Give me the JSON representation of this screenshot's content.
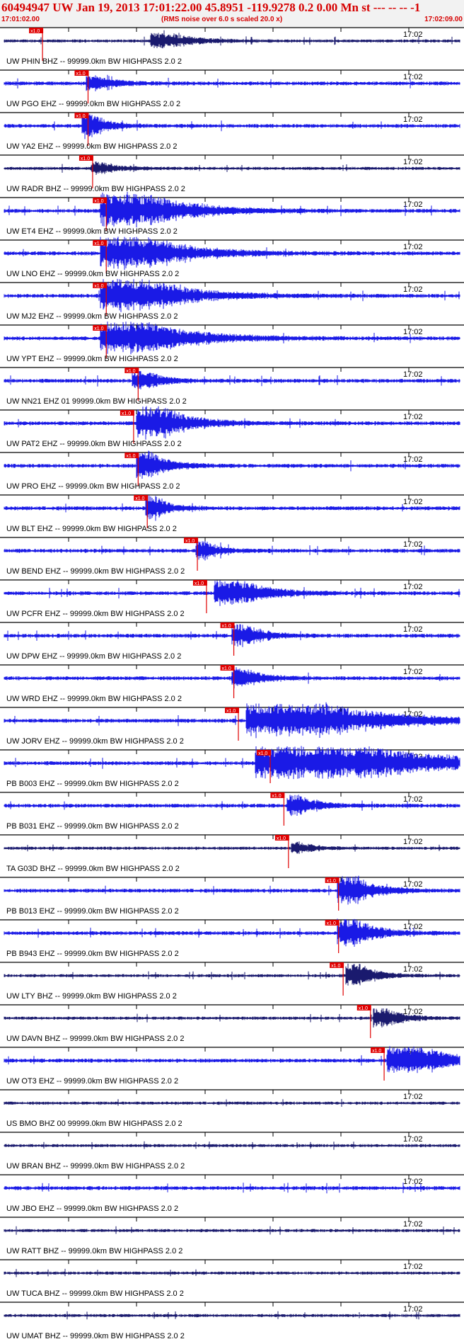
{
  "header": {
    "title": "60494947 UW Jan 19, 2013 17:01:22.00   45.8951 -119.9278  0.2 0.00 Mn st --- -- --  -1",
    "subtitle": "(RMS noise over 6.0 s scaled 20.0 x)",
    "start_time": "17:01:02.00",
    "end_time": "17:02:09.00"
  },
  "tick_time_label": "17:02",
  "pick_label": "x1.0",
  "colors": {
    "header_text": "#d60000",
    "trace_blue": "#1a1ae6",
    "trace_dark": "#1a1a6e",
    "pick_marker": "#e00000",
    "axis": "#000000"
  },
  "stations": [
    {
      "label": "UW PHIN BHZ -- 99999.0km BW  HIGHPASS  2.0  2",
      "color": "dark",
      "pick": 0.07,
      "onset": 0.32,
      "amp": 0.45,
      "dur": 0.05
    },
    {
      "label": "UW PGO EHZ -- 99999.0km BW  HIGHPASS  2.0  2",
      "color": "blue",
      "pick": 0.17,
      "onset": 0.18,
      "amp": 0.4,
      "dur": 0.03
    },
    {
      "label": "UW YA2 EHZ -- 99999.0km BW  HIGHPASS  2.0  2",
      "color": "blue",
      "pick": 0.17,
      "onset": 0.17,
      "amp": 0.85,
      "dur": 0.02
    },
    {
      "label": "UW RADR BHZ -- 99999.0km BW  HIGHPASS  2.0  2",
      "color": "dark",
      "pick": 0.18,
      "onset": 0.19,
      "amp": 0.35,
      "dur": 0.03
    },
    {
      "label": "UW ET4 EHZ -- 99999.0km BW  HIGHPASS  2.0  2",
      "color": "blue",
      "pick": 0.21,
      "onset": 0.21,
      "amp": 1.0,
      "dur": 0.11
    },
    {
      "label": "UW LNO EHZ -- 99999.0km BW  HIGHPASS  2.0  2",
      "color": "blue",
      "pick": 0.21,
      "onset": 0.21,
      "amp": 1.0,
      "dur": 0.11
    },
    {
      "label": "UW MJ2 EHZ -- 99999.0km BW  HIGHPASS  2.0  2",
      "color": "blue",
      "pick": 0.21,
      "onset": 0.21,
      "amp": 1.0,
      "dur": 0.11
    },
    {
      "label": "UW YPT EHZ -- 99999.0km BW  HIGHPASS  2.0  2",
      "color": "blue",
      "pick": 0.21,
      "onset": 0.21,
      "amp": 1.0,
      "dur": 0.11
    },
    {
      "label": "UW NN21 EHZ 01 99999.0km BW  HIGHPASS  2.0  2",
      "color": "blue",
      "pick": 0.28,
      "onset": 0.28,
      "amp": 0.6,
      "dur": 0.03
    },
    {
      "label": "UW PAT2 EHZ -- 99999.0km BW  HIGHPASS  2.0  2",
      "color": "blue",
      "pick": 0.27,
      "onset": 0.29,
      "amp": 1.0,
      "dur": 0.06
    },
    {
      "label": "UW PRO EHZ -- 99999.0km BW  HIGHPASS  2.0  2",
      "color": "blue",
      "pick": 0.28,
      "onset": 0.29,
      "amp": 0.9,
      "dur": 0.03
    },
    {
      "label": "UW BLT EHZ -- 99999.0km BW  HIGHPASS  2.0  2",
      "color": "blue",
      "pick": 0.3,
      "onset": 0.31,
      "amp": 0.8,
      "dur": 0.02
    },
    {
      "label": "UW BEND EHZ -- 99999.0km BW  HIGHPASS  2.0  2",
      "color": "blue",
      "pick": 0.41,
      "onset": 0.42,
      "amp": 0.6,
      "dur": 0.02
    },
    {
      "label": "UW PCFR EHZ -- 99999.0km BW  HIGHPASS  2.0  2",
      "color": "blue",
      "pick": 0.43,
      "onset": 0.46,
      "amp": 0.8,
      "dur": 0.06
    },
    {
      "label": "UW DPW EHZ -- 99999.0km BW  HIGHPASS  2.0  2",
      "color": "blue",
      "pick": 0.49,
      "onset": 0.5,
      "amp": 0.7,
      "dur": 0.03
    },
    {
      "label": "UW WRD EHZ -- 99999.0km BW  HIGHPASS  2.0  2",
      "color": "blue",
      "pick": 0.49,
      "onset": 0.5,
      "amp": 0.6,
      "dur": 0.03
    },
    {
      "label": "UW JORV EHZ -- 99999.0km BW  HIGHPASS  2.0  2",
      "color": "blue",
      "pick": 0.5,
      "onset": 0.53,
      "amp": 1.0,
      "dur": 0.18
    },
    {
      "label": "PB B003 EHZ -- 99999.0km BW  HIGHPASS  2.0  2",
      "color": "blue",
      "pick": 0.57,
      "onset": 0.55,
      "amp": 1.0,
      "dur": 0.25
    },
    {
      "label": "PB B031 EHZ -- 99999.0km BW  HIGHPASS  2.0  2",
      "color": "blue",
      "pick": 0.6,
      "onset": 0.62,
      "amp": 0.6,
      "dur": 0.03
    },
    {
      "label": "TA G03D BHZ -- 99999.0km BW  HIGHPASS  2.0  2",
      "color": "dark",
      "pick": 0.61,
      "onset": 0.63,
      "amp": 0.35,
      "dur": 0.02
    },
    {
      "label": "PB B013 EHZ -- 99999.0km BW  HIGHPASS  2.0  2",
      "color": "blue",
      "pick": 0.72,
      "onset": 0.73,
      "amp": 0.9,
      "dur": 0.04
    },
    {
      "label": "PB B943 EHZ -- 99999.0km BW  HIGHPASS  2.0  2",
      "color": "blue",
      "pick": 0.72,
      "onset": 0.73,
      "amp": 0.9,
      "dur": 0.04
    },
    {
      "label": "UW LTY BHZ -- 99999.0km BW  HIGHPASS  2.0  2",
      "color": "dark",
      "pick": 0.73,
      "onset": 0.75,
      "amp": 0.7,
      "dur": 0.03
    },
    {
      "label": "UW DAVN BHZ -- 99999.0km BW  HIGHPASS  2.0  2",
      "color": "dark",
      "pick": 0.79,
      "onset": 0.81,
      "amp": 0.6,
      "dur": 0.03
    },
    {
      "label": "UW OT3 EHZ -- 99999.0km BW  HIGHPASS  2.0  2",
      "color": "blue",
      "pick": 0.82,
      "onset": 0.84,
      "amp": 0.8,
      "dur": 0.08
    },
    {
      "label": "US BMO BHZ 00 99999.0km BW  HIGHPASS  2.0  2",
      "color": "dark",
      "pick": null,
      "onset": null,
      "amp": 0,
      "dur": 0
    },
    {
      "label": "UW BRAN BHZ -- 99999.0km BW  HIGHPASS  2.0  2",
      "color": "dark",
      "pick": null,
      "onset": null,
      "amp": 0,
      "dur": 0
    },
    {
      "label": "UW JBO EHZ -- 99999.0km BW  HIGHPASS  2.0  2",
      "color": "blue",
      "pick": null,
      "onset": null,
      "amp": 0,
      "dur": 0
    },
    {
      "label": "UW RATT BHZ -- 99999.0km BW  HIGHPASS  2.0  2",
      "color": "dark",
      "pick": null,
      "onset": null,
      "amp": 0,
      "dur": 0
    },
    {
      "label": "UW TUCA BHZ -- 99999.0km BW  HIGHPASS  2.0  2",
      "color": "dark",
      "pick": null,
      "onset": null,
      "amp": 0,
      "dur": 0
    },
    {
      "label": "UW UMAT BHZ -- 99999.0km BW  HIGHPASS  2.0  2",
      "color": "dark",
      "pick": null,
      "onset": null,
      "amp": 0,
      "dur": 0
    }
  ]
}
